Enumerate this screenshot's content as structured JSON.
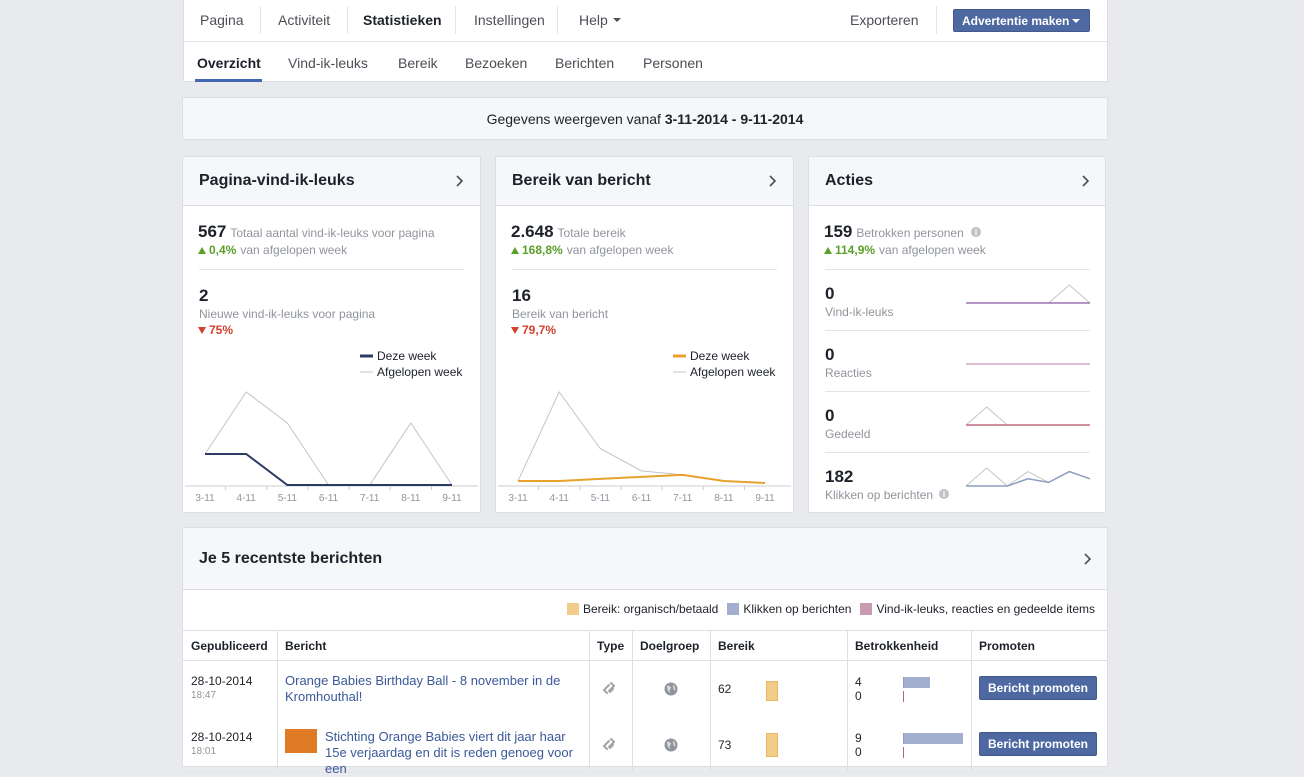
{
  "nav": {
    "tabs": [
      "Pagina",
      "Activiteit",
      "Statistieken",
      "Instellingen",
      "Help"
    ],
    "export": "Exporteren",
    "create_ad": "Advertentie maken"
  },
  "subnav": [
    "Overzicht",
    "Vind-ik-leuks",
    "Bereik",
    "Bezoeken",
    "Berichten",
    "Personen"
  ],
  "date_bar": {
    "prefix": "Gegevens weergeven vanaf",
    "range": "3-11-2014 - 9-11-2014"
  },
  "cards": [
    {
      "title": "Pagina-vind-ik-leuks",
      "total": "567",
      "total_label": "Totaal aantal vind-ik-leuks voor pagina",
      "change": "0,4%",
      "change_label": "van afgelopen week",
      "metric": "2",
      "metric_label": "Nieuwe vind-ik-leuks voor pagina",
      "metric_change": "75%"
    },
    {
      "title": "Bereik van bericht",
      "total": "2.648",
      "total_label": "Totale bereik",
      "change": "168,8%",
      "change_label": "van afgelopen week",
      "metric": "16",
      "metric_label": "Bereik van bericht",
      "metric_change": "79,7%"
    },
    {
      "title": "Acties",
      "total": "159",
      "total_label": "Betrokken personen",
      "change": "114,9%",
      "change_label": "van afgelopen week",
      "metrics": [
        {
          "value": "0",
          "label": "Vind-ik-leuks"
        },
        {
          "value": "0",
          "label": "Reacties"
        },
        {
          "value": "0",
          "label": "Gedeeld"
        },
        {
          "value": "182",
          "label": "Klikken op berichten"
        }
      ]
    }
  ],
  "chart_data": [
    {
      "type": "line",
      "categories": [
        "3-11",
        "4-11",
        "5-11",
        "6-11",
        "7-11",
        "8-11",
        "9-11"
      ],
      "series": [
        {
          "name": "Deze week",
          "color": "#2b3b64",
          "values": [
            2,
            2,
            0,
            0,
            0,
            0,
            0
          ]
        },
        {
          "name": "Afgelopen week",
          "color": "#c4c4c4",
          "values": [
            2,
            6,
            4,
            0,
            0,
            4,
            0
          ]
        }
      ]
    },
    {
      "type": "line",
      "categories": [
        "3-11",
        "4-11",
        "5-11",
        "6-11",
        "7-11",
        "8-11",
        "9-11"
      ],
      "series": [
        {
          "name": "Deze week",
          "color": "#e8a12b",
          "values": [
            2,
            2,
            3,
            4,
            5,
            2,
            1
          ]
        },
        {
          "name": "Afgelopen week",
          "color": "#c4c4c4",
          "values": [
            2,
            46,
            18,
            7,
            5,
            2,
            1
          ]
        }
      ]
    },
    {
      "type": "sparkline",
      "series": [
        {
          "color": "#c4c4c4",
          "values": [
            0,
            0,
            0,
            0,
            0,
            1,
            0
          ]
        },
        {
          "color": "#9d74b0",
          "values": [
            0,
            0,
            0,
            0,
            0,
            0,
            0
          ]
        }
      ]
    },
    {
      "type": "sparkline",
      "series": [
        {
          "color": "#c4c4c4",
          "values": [
            0,
            0,
            0,
            0,
            0,
            0,
            0
          ]
        },
        {
          "color": "#cfa9c4",
          "values": [
            0,
            0,
            0,
            0,
            0,
            0,
            0
          ]
        }
      ]
    },
    {
      "type": "sparkline",
      "series": [
        {
          "color": "#c4c4c4",
          "values": [
            0,
            1,
            0,
            0,
            0,
            0,
            0
          ]
        },
        {
          "color": "#c06b7f",
          "values": [
            0,
            0,
            0,
            0,
            0,
            0,
            0
          ]
        }
      ]
    },
    {
      "type": "sparkline",
      "series": [
        {
          "color": "#c4c4c4",
          "values": [
            0,
            5,
            0,
            4,
            1,
            4,
            2
          ]
        },
        {
          "color": "#8b9dc3",
          "values": [
            0,
            0,
            0,
            2,
            1,
            4,
            2
          ]
        }
      ]
    }
  ],
  "posts": {
    "title": "Je 5 recentste berichten",
    "legend": [
      {
        "label": "Bereik: organisch/betaald",
        "color": "#f2cd8a"
      },
      {
        "label": "Klikken op berichten",
        "color": "#a4afcf"
      },
      {
        "label": "Vind-ik-leuks, reacties en gedeelde items",
        "color": "#c99ab0"
      }
    ],
    "columns": [
      "Gepubliceerd",
      "Bericht",
      "Type",
      "Doelgroep",
      "Bereik",
      "Betrokkenheid",
      "Promoten"
    ],
    "rows": [
      {
        "date": "28-10-2014",
        "time": "18:47",
        "message": "Orange Babies Birthday Ball - 8 november in de Kromhouthal!",
        "reach": 62,
        "engagement": [
          4,
          0
        ],
        "button": "Bericht promoten"
      },
      {
        "date": "28-10-2014",
        "time": "18:01",
        "message": "Stichting Orange Babies viert dit jaar haar 15e verjaardag en dit is reden genoeg voor een",
        "reach": 73,
        "engagement": [
          9,
          0
        ],
        "button": "Bericht promoten"
      }
    ]
  }
}
